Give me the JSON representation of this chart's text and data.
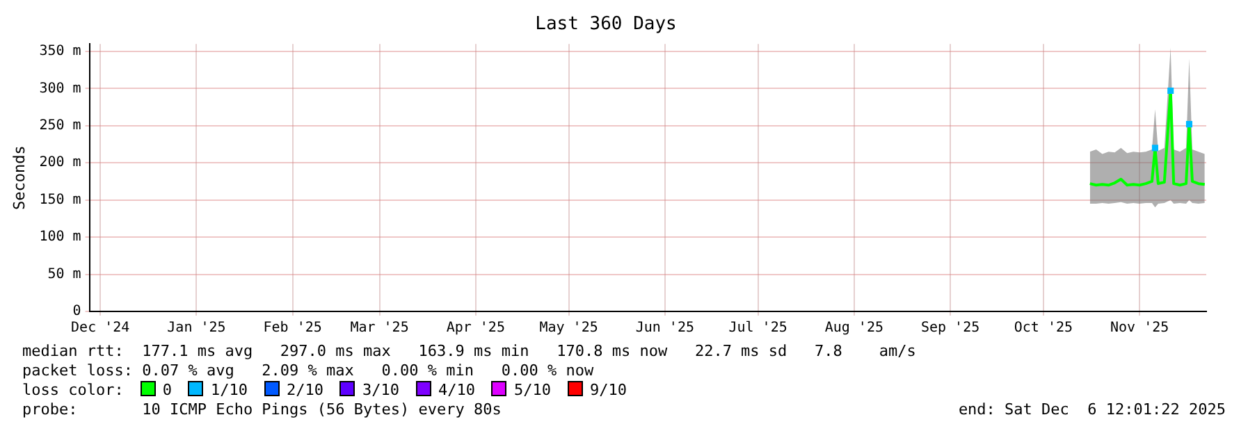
{
  "chart_data": {
    "type": "line",
    "title": "Last 360 Days",
    "ylabel": "Seconds",
    "xlim": [
      "2024-12-11T12:00",
      "2025-12-06T12:00"
    ],
    "xticks": [
      {
        "value": "2024-12-15",
        "label": "Dec '24"
      },
      {
        "value": "2025-01-15",
        "label": "Jan '25"
      },
      {
        "value": "2025-02-15",
        "label": "Feb '25"
      },
      {
        "value": "2025-03-15",
        "label": "Mar '25"
      },
      {
        "value": "2025-04-15",
        "label": "Apr '25"
      },
      {
        "value": "2025-05-15",
        "label": "May '25"
      },
      {
        "value": "2025-06-15",
        "label": "Jun '25"
      },
      {
        "value": "2025-07-15",
        "label": "Jul '25"
      },
      {
        "value": "2025-08-15",
        "label": "Aug '25"
      },
      {
        "value": "2025-09-15",
        "label": "Sep '25"
      },
      {
        "value": "2025-10-15",
        "label": "Oct '25"
      },
      {
        "value": "2025-11-15",
        "label": "Nov '25"
      }
    ],
    "ylim": [
      0,
      360
    ],
    "yticks": [
      0,
      {
        "value": 50,
        "label": "50 m"
      },
      {
        "value": 100,
        "label": "100 m"
      },
      {
        "value": 150,
        "label": "150 m"
      },
      {
        "value": 200,
        "label": "200 m"
      },
      {
        "value": 250,
        "label": "250 m"
      },
      {
        "value": 300,
        "label": "300 m"
      },
      {
        "value": 350,
        "label": "350 m"
      }
    ],
    "x": [
      "2025-10-30",
      "2025-11-01",
      "2025-11-03",
      "2025-11-05",
      "2025-11-07",
      "2025-11-09",
      "2025-11-11",
      "2025-11-13",
      "2025-11-15",
      "2025-11-17",
      "2025-11-19",
      "2025-11-20",
      "2025-11-21",
      "2025-11-23",
      "2025-11-25",
      "2025-11-26",
      "2025-11-28",
      "2025-11-30",
      "2025-12-01",
      "2025-12-02",
      "2025-12-04",
      "2025-12-06"
    ],
    "series": [
      {
        "name": "0",
        "color": "#00ff00",
        "values": [
          172,
          170,
          171,
          170,
          173,
          178,
          170,
          171,
          170,
          172,
          175,
          220,
          172,
          174,
          297,
          172,
          170,
          172,
          252,
          175,
          172,
          171
        ],
        "lower": [
          145,
          145,
          146,
          145,
          146,
          147,
          145,
          146,
          145,
          146,
          146,
          140,
          145,
          146,
          150,
          145,
          146,
          145,
          150,
          146,
          145,
          146
        ],
        "upper": [
          215,
          218,
          212,
          215,
          214,
          220,
          213,
          215,
          214,
          215,
          218,
          272,
          216,
          220,
          355,
          218,
          215,
          220,
          340,
          218,
          215,
          212
        ]
      },
      {
        "name": "1/10",
        "color": "#00b8ff",
        "type": "scatter",
        "marker": "square",
        "values": [
          null,
          null,
          null,
          null,
          null,
          null,
          null,
          null,
          null,
          null,
          null,
          220,
          null,
          null,
          297,
          null,
          null,
          null,
          252,
          null,
          null,
          null
        ]
      },
      {
        "name": "2/10",
        "color": "#0059ff",
        "type": "scatter",
        "marker": "square",
        "values": [
          null,
          null,
          null,
          null,
          null,
          null,
          null,
          null,
          null,
          null,
          null,
          null,
          null,
          null,
          null,
          null,
          null,
          null,
          null,
          null,
          null,
          null
        ]
      },
      {
        "name": "3/10",
        "color": "#5e00ff",
        "type": "scatter",
        "marker": "square",
        "values": [
          null,
          null,
          null,
          null,
          null,
          null,
          null,
          null,
          null,
          null,
          null,
          null,
          null,
          null,
          null,
          null,
          null,
          null,
          null,
          null,
          null,
          null
        ]
      },
      {
        "name": "4/10",
        "color": "#7e00ff",
        "type": "scatter",
        "marker": "square",
        "values": [
          null,
          null,
          null,
          null,
          null,
          null,
          null,
          null,
          null,
          null,
          null,
          null,
          null,
          null,
          null,
          null,
          null,
          null,
          null,
          null,
          null,
          null
        ]
      },
      {
        "name": "5/10",
        "color": "#dd00ff",
        "type": "scatter",
        "marker": "square",
        "values": [
          null,
          null,
          null,
          null,
          null,
          null,
          null,
          null,
          null,
          null,
          null,
          null,
          null,
          null,
          null,
          null,
          null,
          null,
          null,
          null,
          null,
          null
        ]
      },
      {
        "name": "9/10",
        "color": "#ff0000",
        "type": "scatter",
        "marker": "square",
        "values": [
          null,
          null,
          null,
          null,
          null,
          null,
          null,
          null,
          null,
          null,
          null,
          null,
          null,
          null,
          null,
          null,
          null,
          null,
          null,
          null,
          null,
          null
        ]
      }
    ],
    "grid": true,
    "legend": "bottom",
    "marker": "none",
    "annotations": [
      "median rtt:  177.1 ms avg   297.0 ms max   163.9 ms min   170.8 ms now   22.7 ms sd   7.8    am/s",
      "packet loss: 0.07 % avg   2.09 % max   0.00 % min   0.00 % now",
      "loss color:",
      "probe:       10 ICMP Echo Pings (56 Bytes) every 80s",
      "end: Sat Dec  6 12:01:22 2025"
    ]
  }
}
